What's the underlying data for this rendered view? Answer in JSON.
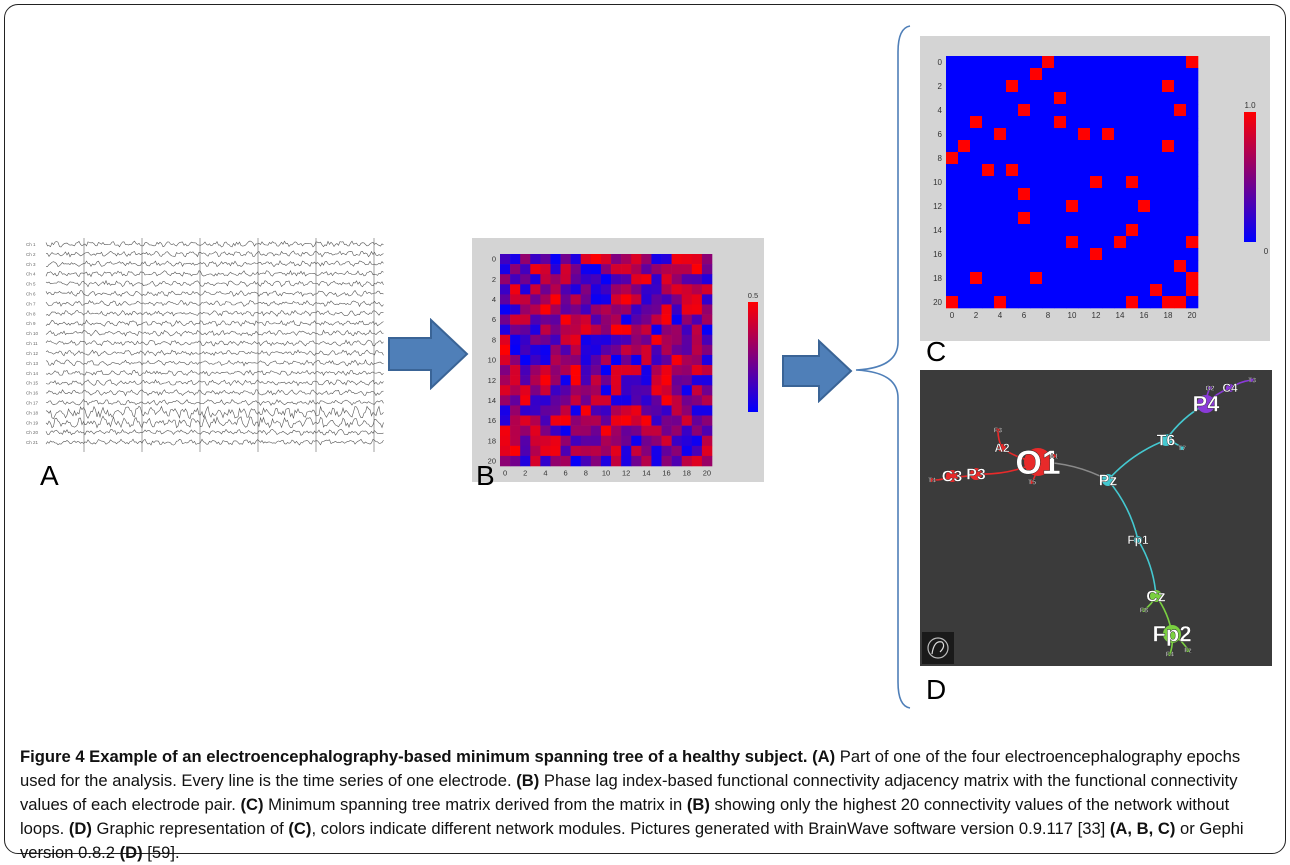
{
  "panels": {
    "a": {
      "letter": "A",
      "channel_labels": [
        "Ch 1",
        "Ch 2",
        "Ch 3",
        "Ch 4",
        "Ch 5",
        "Ch 6",
        "Ch 7",
        "Ch 8",
        "Ch 9",
        "Ch 10",
        "Ch 11",
        "Ch 12",
        "Ch 13",
        "Ch 14",
        "Ch 15",
        "Ch 16",
        "Ch 17",
        "Ch 18",
        "Ch 19",
        "Ch 20",
        "Ch 21"
      ]
    },
    "b": {
      "letter": "B",
      "x_ticks": [
        "0",
        "2",
        "4",
        "6",
        "8",
        "10",
        "12",
        "14",
        "16",
        "18",
        "20"
      ],
      "y_ticks": [
        "0",
        "2",
        "4",
        "6",
        "8",
        "10",
        "12",
        "14",
        "16",
        "18",
        "20"
      ],
      "colorbar_max": "0.5",
      "colorbar_min": "0",
      "colors": {
        "low": "#0000ff",
        "high": "#ff0000",
        "frame": "#d4d4d4"
      }
    },
    "c": {
      "letter": "C",
      "x_ticks": [
        "0",
        "2",
        "4",
        "6",
        "8",
        "10",
        "12",
        "14",
        "16",
        "18",
        "20"
      ],
      "y_ticks": [
        "0",
        "2",
        "4",
        "6",
        "8",
        "10",
        "12",
        "14",
        "16",
        "18",
        "20"
      ],
      "colorbar_max": "1.0",
      "colorbar_min": "0",
      "red_cells": [
        [
          8,
          0
        ],
        [
          20,
          0
        ],
        [
          7,
          1
        ],
        [
          5,
          2
        ],
        [
          18,
          2
        ],
        [
          19,
          4
        ],
        [
          6,
          4
        ],
        [
          9,
          3
        ],
        [
          2,
          5
        ],
        [
          9,
          5
        ],
        [
          4,
          6
        ],
        [
          11,
          6
        ],
        [
          13,
          6
        ],
        [
          0,
          8
        ],
        [
          1,
          7
        ],
        [
          18,
          7
        ],
        [
          3,
          9
        ],
        [
          5,
          9
        ],
        [
          12,
          10
        ],
        [
          15,
          10
        ],
        [
          6,
          11
        ],
        [
          16,
          12
        ],
        [
          10,
          12
        ],
        [
          6,
          13
        ],
        [
          15,
          14
        ],
        [
          10,
          15
        ],
        [
          14,
          15
        ],
        [
          20,
          15
        ],
        [
          12,
          16
        ],
        [
          19,
          17
        ],
        [
          2,
          18
        ],
        [
          7,
          18
        ],
        [
          20,
          18
        ],
        [
          17,
          19
        ],
        [
          20,
          19
        ],
        [
          0,
          20
        ],
        [
          4,
          20
        ],
        [
          15,
          20
        ],
        [
          18,
          20
        ],
        [
          19,
          20
        ]
      ],
      "colors": {
        "background": "#0000ff",
        "cell": "#ff0000",
        "frame": "#d4d4d4"
      }
    },
    "d": {
      "letter": "D",
      "background": "#3b3b3b",
      "nodes": [
        {
          "id": "O1",
          "label": "O1",
          "size": "large",
          "color": "#e82a2a"
        },
        {
          "id": "A1",
          "label": "A1",
          "size": "tiny",
          "color": "#e82a2a"
        },
        {
          "id": "T5",
          "label": "T5",
          "size": "tiny",
          "color": "#e82a2a"
        },
        {
          "id": "A2",
          "label": "A2",
          "size": "small",
          "color": "#e82a2a"
        },
        {
          "id": "F3",
          "label": "F3",
          "size": "tiny",
          "color": "#e82a2a"
        },
        {
          "id": "P3",
          "label": "P3",
          "size": "medium",
          "color": "#e82a2a"
        },
        {
          "id": "C3",
          "label": "C3",
          "size": "medium",
          "color": "#e82a2a"
        },
        {
          "id": "T4",
          "label": "T4",
          "size": "tiny",
          "color": "#e82a2a"
        },
        {
          "id": "Pz",
          "label": "Pz",
          "size": "medium",
          "color": "#44c8d0"
        },
        {
          "id": "T6",
          "label": "T6",
          "size": "medium",
          "color": "#44c8d0"
        },
        {
          "id": "T7",
          "label": "T7",
          "size": "tiny",
          "color": "#44c8d0"
        },
        {
          "id": "P4",
          "label": "P4",
          "size": "large-ish",
          "color": "#8a3ad8"
        },
        {
          "id": "O2",
          "label": "O2",
          "size": "tiny",
          "color": "#8a3ad8"
        },
        {
          "id": "C4",
          "label": "C4",
          "size": "small",
          "color": "#8a3ad8"
        },
        {
          "id": "T3",
          "label": "T3",
          "size": "tiny",
          "color": "#8a3ad8"
        },
        {
          "id": "Fp1",
          "label": "Fp1",
          "size": "small",
          "color": "#44c8d0"
        },
        {
          "id": "Cz",
          "label": "Cz",
          "size": "medium",
          "color": "#7ad040"
        },
        {
          "id": "F8",
          "label": "F8",
          "size": "tiny",
          "color": "#7ad040"
        },
        {
          "id": "Fp2",
          "label": "Fp2",
          "size": "large-ish",
          "color": "#7ad040"
        },
        {
          "id": "F4",
          "label": "F4",
          "size": "tiny",
          "color": "#7ad040"
        },
        {
          "id": "Fz",
          "label": "Fz",
          "size": "tiny",
          "color": "#7ad040"
        }
      ],
      "gephi_logo": "Gephi logo"
    }
  },
  "caption": {
    "title": "Figure 4 Example of an electroencephalography-based minimum spanning tree of a healthy subject.",
    "a_label": "(A)",
    "a_text": " Part of one of the four electroencephalography epochs used for the analysis. Every line is the time series of one electrode. ",
    "b_label": "(B)",
    "b_text": " Phase lag index-based functional connectivity adjacency matrix with the functional connectivity values of each electrode pair. ",
    "c_label": "(C)",
    "c_text": " Minimum spanning tree matrix derived from the matrix in ",
    "c_ref": "(B)",
    "c_text2": " showing only the highest 20 connectivity values of the network without loops. ",
    "d_label": "(D)",
    "d_text": " Graphic representation of ",
    "d_ref": "(C)",
    "d_text2": ", colors indicate different network modules. Pictures generated with BrainWave software version 0.9.117 [33] ",
    "d_ref2": "(A, B, C)",
    "d_text3": " or Gephi version 0.8.2 ",
    "d_ref3": "(D)",
    "d_text4": " [59]."
  }
}
